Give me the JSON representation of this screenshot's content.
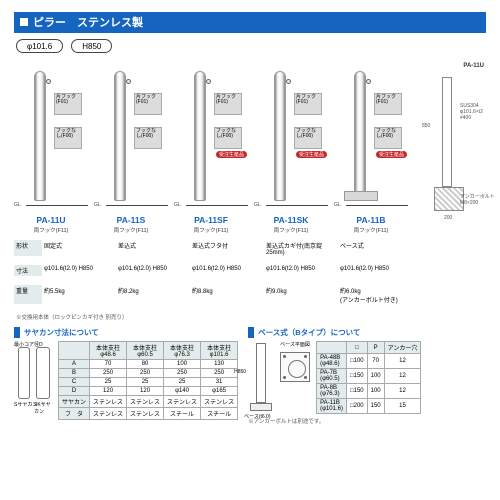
{
  "header": {
    "title": "ピラー　ステンレス製",
    "bg": "#1565c0"
  },
  "pills": {
    "diam": "φ101.6",
    "height": "H850"
  },
  "subhead_sayakan": "サヤカン寸法について",
  "subhead_base": "ベース式（Bタイプ）について",
  "products": [
    {
      "code": "PA-11U",
      "sub": "両フック(F11)",
      "swatch_top": "片フック(F01)",
      "swatch_bot": "フックなし(F00)",
      "red": false,
      "baseplate": false
    },
    {
      "code": "PA-11S",
      "sub": "両フック(F11)",
      "swatch_top": "片フック(F01)",
      "swatch_bot": "フックなし(F00)",
      "red": false,
      "baseplate": false
    },
    {
      "code": "PA-11SF",
      "sub": "両フック(F11)",
      "swatch_top": "片フック(F01)",
      "swatch_bot": "フックなし(F00)",
      "red": true,
      "baseplate": false
    },
    {
      "code": "PA-11SK",
      "sub": "両フック(F11)",
      "swatch_top": "片フック(F01)",
      "swatch_bot": "フックなし(F00)",
      "red": true,
      "baseplate": false
    },
    {
      "code": "PA-11B",
      "sub": "両フック(F11)",
      "swatch_top": "片フック(F01)",
      "swatch_bot": "フックなし(F00)",
      "red": true,
      "baseplate": true
    }
  ],
  "redtag": "受注生産品",
  "diagram_ref": "PA-11U",
  "diag_labels": {
    "mat": "SUS304\nφ101.6×t2\n#400",
    "anchor": "アンカーボルト\nM8×200",
    "h": "850",
    "w": "200",
    "p": "200"
  },
  "specrows": {
    "labels": [
      "形状",
      "寸法",
      "重量"
    ],
    "r0": [
      "固定式",
      "差込式",
      "差込式フタ付",
      "差込式カギ付(南京錠25mm)",
      "ベース式"
    ],
    "r1": [
      "φ101.6(t2.0) H850",
      "φ101.6(t2.0) H850",
      "φ101.6(t2.0) H850",
      "φ101.6(t2.0) H850",
      "φ101.6(t2.0) H850"
    ],
    "r2": [
      "約5.5kg",
      "約8.2kg",
      "約8.8kg",
      "約9.0kg",
      "約6.0kg\n(アンカーボルト付き)"
    ]
  },
  "specfoot": "※交換用本体（ロックピンカギ付き 別売り）",
  "sayakan": {
    "headers": [
      "",
      "本体支柱\nφ48.6",
      "本体支柱\nφ60.5",
      "本体支柱\nφ76.3",
      "本体支柱\nφ101.6"
    ],
    "rows": [
      [
        "A",
        "70",
        "80",
        "100",
        "130"
      ],
      [
        "B",
        "250",
        "250",
        "250",
        "250"
      ],
      [
        "C",
        "25",
        "25",
        "25",
        "31"
      ],
      [
        "D",
        "120",
        "120",
        "φ140",
        "φ165"
      ],
      [
        "サヤカン",
        "ステンレス",
        "ステンレス",
        "ステンレス",
        "ステンレス"
      ],
      [
        "フ　タ",
        "ステンレス",
        "ステンレス",
        "スチール",
        "スチール"
      ]
    ],
    "sk_labels": {
      "left": "Sサヤカン",
      "right": "SKサヤカン",
      "minD": "最小コア径D"
    }
  },
  "base": {
    "headers": [
      "",
      "□",
      "P",
      "アンカー穴"
    ],
    "rows": [
      [
        "PA-48B\n(φ48.6)",
        "□100",
        "70",
        "12"
      ],
      [
        "PA-7B\n(φ60.5)",
        "□150",
        "100",
        "12"
      ],
      [
        "PA-8B\n(φ76.3)",
        "□150",
        "100",
        "12"
      ],
      [
        "PA-11B\n(φ101.6)",
        "□200",
        "150",
        "15"
      ]
    ],
    "fig": {
      "h": "H850",
      "plate": "ベース(t6.0)",
      "plan": "ベース平面図"
    },
    "note": "※アンカーボルトは別途です。"
  },
  "colors": {
    "blue": "#1565c0",
    "cellbg": "#e3ecec",
    "red": "#c62828"
  },
  "gl": "GL"
}
